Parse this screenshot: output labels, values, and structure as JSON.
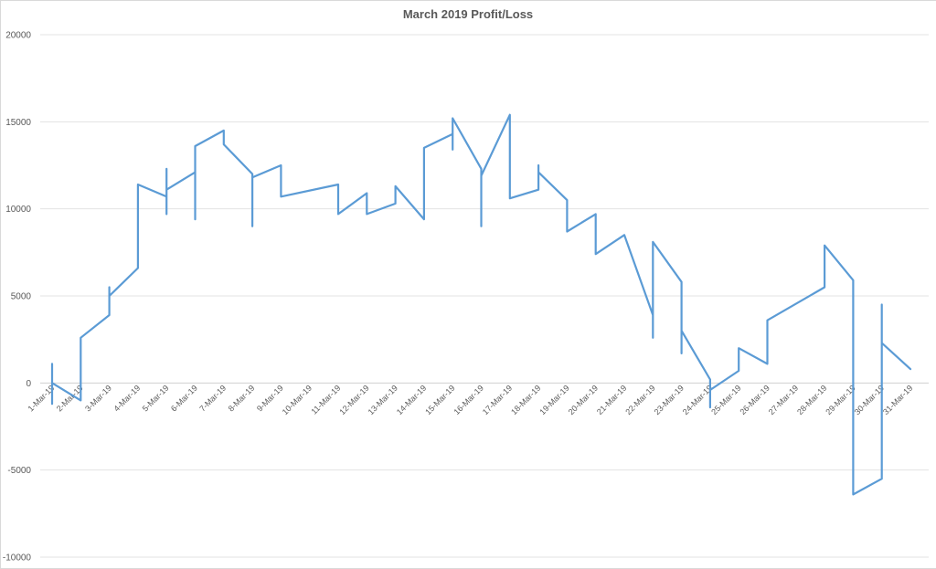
{
  "chart_data": {
    "type": "line",
    "title": "March 2019 Profit/Loss",
    "xlabel": "",
    "ylabel": "",
    "ylim": [
      -10000,
      20000
    ],
    "y_ticks": [
      -10000,
      -5000,
      0,
      5000,
      10000,
      15000,
      20000
    ],
    "y_tick_labels": [
      "-10000",
      "-5000",
      "0",
      "5000",
      "10000",
      "15000",
      "20000"
    ],
    "grid": true,
    "legend": "none",
    "categories": [
      "1-Mar-19",
      "2-Mar-19",
      "3-Mar-19",
      "4-Mar-19",
      "5-Mar-19",
      "6-Mar-19",
      "7-Mar-19",
      "8-Mar-19",
      "9-Mar-19",
      "10-Mar-19",
      "11-Mar-19",
      "12-Mar-19",
      "13-Mar-19",
      "14-Mar-19",
      "15-Mar-19",
      "16-Mar-19",
      "17-Mar-19",
      "18-Mar-19",
      "19-Mar-19",
      "20-Mar-19",
      "21-Mar-19",
      "22-Mar-19",
      "23-Mar-19",
      "24-Mar-19",
      "25-Mar-19",
      "26-Mar-19",
      "27-Mar-19",
      "28-Mar-19",
      "29-Mar-19",
      "30-Mar-19",
      "31-Mar-19"
    ],
    "series": [
      {
        "color": "#5b9bd5",
        "points": [
          {
            "x": 1,
            "y": 1100
          },
          {
            "x": 1,
            "y": -1200
          },
          {
            "x": 1,
            "y": 0
          },
          {
            "x": 2,
            "y": -1000
          },
          {
            "x": 2,
            "y": 2600
          },
          {
            "x": 3,
            "y": 3900
          },
          {
            "x": 3,
            "y": 5500
          },
          {
            "x": 3,
            "y": 5000
          },
          {
            "x": 4,
            "y": 6600
          },
          {
            "x": 4,
            "y": 11400
          },
          {
            "x": 5,
            "y": 10700
          },
          {
            "x": 5,
            "y": 12300
          },
          {
            "x": 5,
            "y": 9700
          },
          {
            "x": 5,
            "y": 11100
          },
          {
            "x": 6,
            "y": 12100
          },
          {
            "x": 6,
            "y": 9400
          },
          {
            "x": 6,
            "y": 13600
          },
          {
            "x": 7,
            "y": 14500
          },
          {
            "x": 7,
            "y": 13700
          },
          {
            "x": 8,
            "y": 12000
          },
          {
            "x": 8,
            "y": 9000
          },
          {
            "x": 8,
            "y": 11800
          },
          {
            "x": 9,
            "y": 12500
          },
          {
            "x": 9,
            "y": 10700
          },
          {
            "x": 11,
            "y": 11400
          },
          {
            "x": 11,
            "y": 9700
          },
          {
            "x": 12,
            "y": 10900
          },
          {
            "x": 12,
            "y": 9700
          },
          {
            "x": 13,
            "y": 10300
          },
          {
            "x": 13,
            "y": 11300
          },
          {
            "x": 14,
            "y": 9400
          },
          {
            "x": 14,
            "y": 13500
          },
          {
            "x": 15,
            "y": 14300
          },
          {
            "x": 15,
            "y": 13400
          },
          {
            "x": 15,
            "y": 15200
          },
          {
            "x": 16,
            "y": 12300
          },
          {
            "x": 16,
            "y": 9000
          },
          {
            "x": 16,
            "y": 11900
          },
          {
            "x": 17,
            "y": 15400
          },
          {
            "x": 17,
            "y": 10600
          },
          {
            "x": 18,
            "y": 11100
          },
          {
            "x": 18,
            "y": 12500
          },
          {
            "x": 18,
            "y": 12100
          },
          {
            "x": 19,
            "y": 10500
          },
          {
            "x": 19,
            "y": 8700
          },
          {
            "x": 20,
            "y": 9700
          },
          {
            "x": 20,
            "y": 7400
          },
          {
            "x": 21,
            "y": 8500
          },
          {
            "x": 22,
            "y": 3900
          },
          {
            "x": 22,
            "y": 2600
          },
          {
            "x": 22,
            "y": 8100
          },
          {
            "x": 23,
            "y": 5800
          },
          {
            "x": 23,
            "y": 1700
          },
          {
            "x": 23,
            "y": 3000
          },
          {
            "x": 24,
            "y": 200
          },
          {
            "x": 24,
            "y": -1400
          },
          {
            "x": 24,
            "y": -400
          },
          {
            "x": 25,
            "y": 700
          },
          {
            "x": 25,
            "y": 2000
          },
          {
            "x": 26,
            "y": 1100
          },
          {
            "x": 26,
            "y": 3600
          },
          {
            "x": 28,
            "y": 5500
          },
          {
            "x": 28,
            "y": 7900
          },
          {
            "x": 29,
            "y": 5900
          },
          {
            "x": 29,
            "y": -6400
          },
          {
            "x": 30,
            "y": -5500
          },
          {
            "x": 30,
            "y": 4500
          },
          {
            "x": 30,
            "y": 2300
          },
          {
            "x": 31,
            "y": 800
          }
        ]
      }
    ]
  }
}
